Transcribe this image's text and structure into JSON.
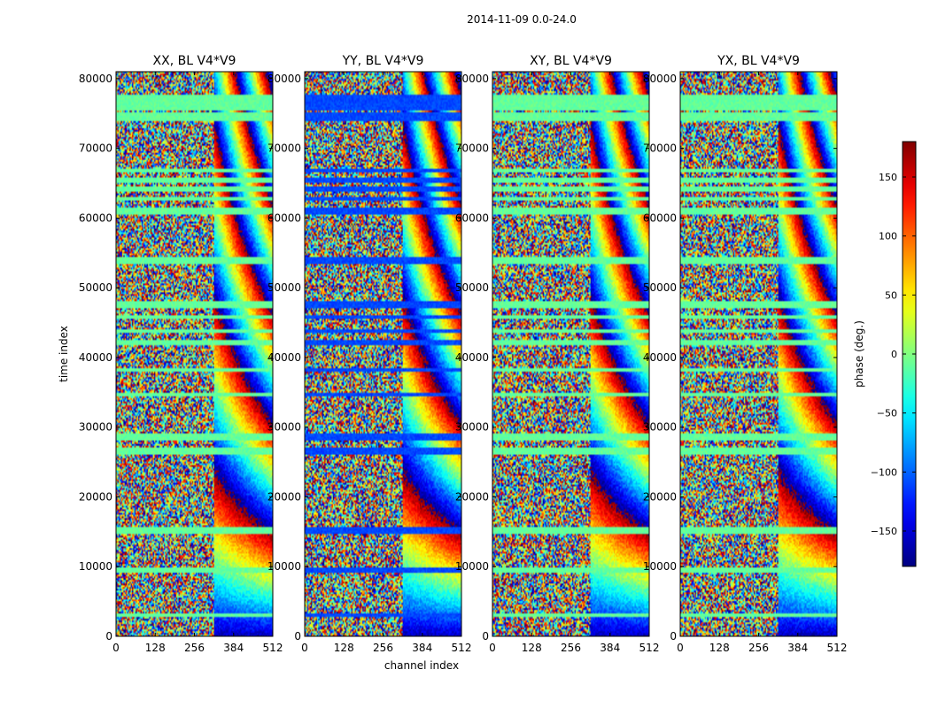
{
  "chart_data": {
    "type": "heatmap",
    "suptitle": "2014-11-09 0.0-24.0",
    "xlabel": "channel index",
    "ylabel": "time index",
    "xlim": [
      0,
      512
    ],
    "ylim": [
      0,
      81000
    ],
    "xticks": [
      0,
      128,
      256,
      384,
      512
    ],
    "yticks": [
      0,
      10000,
      20000,
      30000,
      40000,
      50000,
      60000,
      70000,
      80000
    ],
    "panels": [
      {
        "title": "XX, BL V4*V9",
        "flagged_phase": -10
      },
      {
        "title": "YY, BL V4*V9",
        "flagged_phase": -110
      },
      {
        "title": "XY, BL V4*V9",
        "flagged_phase": -10
      },
      {
        "title": "YX, BL V4*V9",
        "flagged_phase": -10
      }
    ],
    "colorbar": {
      "label": "phase (deg.)",
      "vmin": -180,
      "vmax": 180,
      "ticks": [
        -150,
        -100,
        -50,
        0,
        50,
        100,
        150
      ],
      "colormap": "jet"
    },
    "flagged_time_bands": [
      [
        2800,
        3300
      ],
      [
        9000,
        9800
      ],
      [
        14800,
        15600
      ],
      [
        26000,
        27000
      ],
      [
        28000,
        29000
      ],
      [
        34500,
        35000
      ],
      [
        38000,
        38600
      ],
      [
        41800,
        42500
      ],
      [
        43500,
        44000
      ],
      [
        45500,
        46000
      ],
      [
        47000,
        48200
      ],
      [
        53500,
        54500
      ],
      [
        60500,
        61500
      ],
      [
        62500,
        63000
      ],
      [
        63800,
        64500
      ],
      [
        65000,
        65800
      ],
      [
        66500,
        67000
      ],
      [
        74000,
        75200
      ],
      [
        75500,
        77800
      ]
    ],
    "ripple_channel_start": 320
  }
}
